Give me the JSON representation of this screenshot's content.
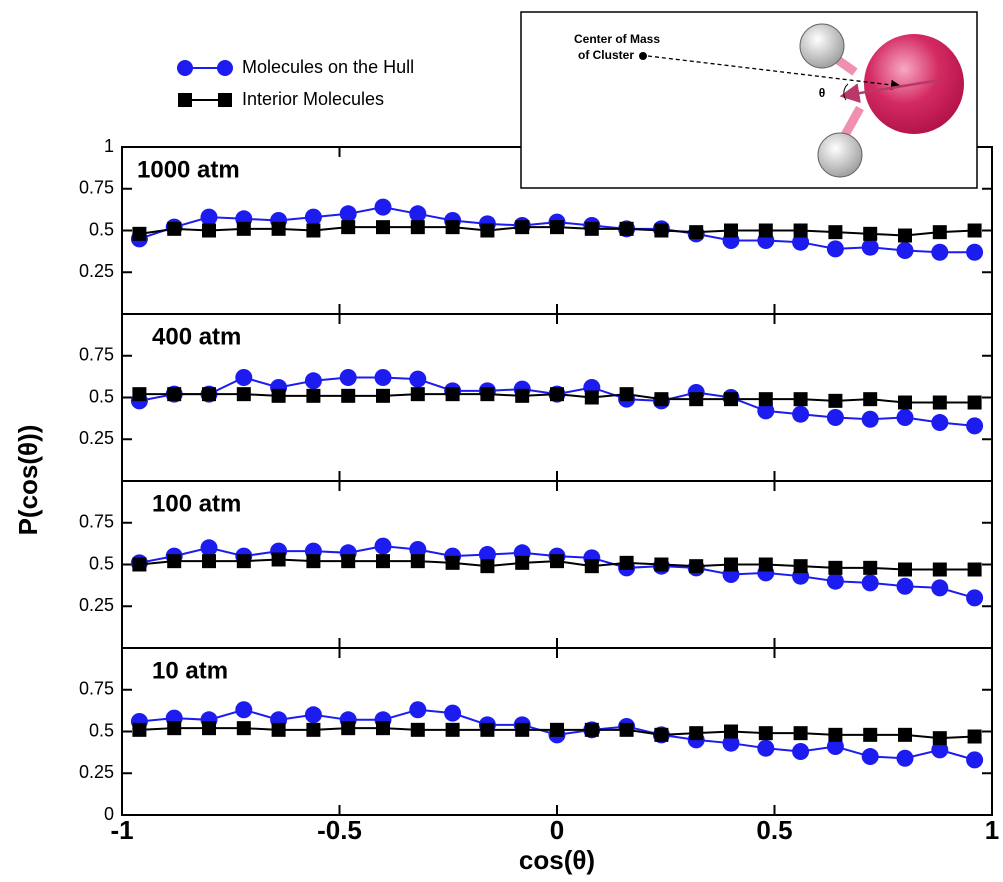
{
  "figure": {
    "xlabel": "cos(θ)",
    "ylabel": "P(cos(θ))"
  },
  "inset": {
    "line1": "Center of Mass",
    "line2": "of Cluster",
    "angle": "θ"
  },
  "chart_data": [
    {
      "type": "line",
      "annotation": "1000 atm",
      "x": [
        -0.96,
        -0.88,
        -0.8,
        -0.72,
        -0.64,
        -0.56,
        -0.48,
        -0.4,
        -0.32,
        -0.24,
        -0.16,
        -0.08,
        0,
        0.08,
        0.16,
        0.24,
        0.32,
        0.4,
        0.48,
        0.56,
        0.64,
        0.72,
        0.8,
        0.88,
        0.96
      ],
      "series": [
        {
          "name": "Molecules on the Hull",
          "color": "#1c1cf0",
          "marker": "circle",
          "values": [
            0.45,
            0.52,
            0.58,
            0.57,
            0.56,
            0.58,
            0.6,
            0.64,
            0.6,
            0.56,
            0.54,
            0.53,
            0.55,
            0.53,
            0.51,
            0.51,
            0.48,
            0.44,
            0.44,
            0.43,
            0.39,
            0.4,
            0.38,
            0.37,
            0.37
          ]
        },
        {
          "name": "Interior Molecules",
          "color": "#000000",
          "marker": "square",
          "values": [
            0.48,
            0.51,
            0.5,
            0.51,
            0.51,
            0.5,
            0.52,
            0.52,
            0.52,
            0.52,
            0.5,
            0.52,
            0.52,
            0.51,
            0.51,
            0.5,
            0.49,
            0.5,
            0.5,
            0.5,
            0.49,
            0.48,
            0.47,
            0.49,
            0.5
          ]
        }
      ],
      "xlim": [
        -1,
        1
      ],
      "ylim": [
        0,
        1
      ],
      "yticks": [
        0.25,
        0.5,
        0.75,
        1
      ]
    },
    {
      "type": "line",
      "annotation": "400 atm",
      "x": [
        -0.96,
        -0.88,
        -0.8,
        -0.72,
        -0.64,
        -0.56,
        -0.48,
        -0.4,
        -0.32,
        -0.24,
        -0.16,
        -0.08,
        0,
        0.08,
        0.16,
        0.24,
        0.32,
        0.4,
        0.48,
        0.56,
        0.64,
        0.72,
        0.8,
        0.88,
        0.96
      ],
      "series": [
        {
          "color": "#1c1cf0",
          "marker": "circle",
          "values": [
            0.48,
            0.52,
            0.52,
            0.62,
            0.56,
            0.6,
            0.62,
            0.62,
            0.61,
            0.54,
            0.54,
            0.55,
            0.52,
            0.56,
            0.49,
            0.48,
            0.53,
            0.5,
            0.42,
            0.4,
            0.38,
            0.37,
            0.38,
            0.35,
            0.33
          ]
        },
        {
          "color": "#000000",
          "marker": "square",
          "values": [
            0.52,
            0.52,
            0.52,
            0.52,
            0.51,
            0.51,
            0.51,
            0.51,
            0.52,
            0.52,
            0.52,
            0.51,
            0.52,
            0.5,
            0.52,
            0.49,
            0.49,
            0.49,
            0.49,
            0.49,
            0.48,
            0.49,
            0.47,
            0.47,
            0.47
          ]
        }
      ],
      "xlim": [
        -1,
        1
      ],
      "ylim": [
        0,
        1
      ],
      "yticks": [
        0.25,
        0.5,
        0.75
      ]
    },
    {
      "type": "line",
      "annotation": "100 atm",
      "x": [
        -0.96,
        -0.88,
        -0.8,
        -0.72,
        -0.64,
        -0.56,
        -0.48,
        -0.4,
        -0.32,
        -0.24,
        -0.16,
        -0.08,
        0,
        0.08,
        0.16,
        0.24,
        0.32,
        0.4,
        0.48,
        0.56,
        0.64,
        0.72,
        0.8,
        0.88,
        0.96
      ],
      "series": [
        {
          "color": "#1c1cf0",
          "marker": "circle",
          "values": [
            0.51,
            0.55,
            0.6,
            0.55,
            0.58,
            0.58,
            0.57,
            0.61,
            0.59,
            0.55,
            0.56,
            0.57,
            0.55,
            0.54,
            0.48,
            0.49,
            0.48,
            0.44,
            0.45,
            0.43,
            0.4,
            0.39,
            0.37,
            0.36,
            0.3
          ]
        },
        {
          "color": "#000000",
          "marker": "square",
          "values": [
            0.5,
            0.52,
            0.52,
            0.52,
            0.53,
            0.52,
            0.52,
            0.52,
            0.52,
            0.51,
            0.49,
            0.51,
            0.52,
            0.49,
            0.51,
            0.5,
            0.49,
            0.5,
            0.5,
            0.49,
            0.48,
            0.48,
            0.47,
            0.47,
            0.47
          ]
        }
      ],
      "xlim": [
        -1,
        1
      ],
      "ylim": [
        0,
        1
      ],
      "yticks": [
        0.25,
        0.5,
        0.75
      ]
    },
    {
      "type": "line",
      "annotation": "10 atm",
      "x": [
        -0.96,
        -0.88,
        -0.8,
        -0.72,
        -0.64,
        -0.56,
        -0.48,
        -0.4,
        -0.32,
        -0.24,
        -0.16,
        -0.08,
        0,
        0.08,
        0.16,
        0.24,
        0.32,
        0.4,
        0.48,
        0.56,
        0.64,
        0.72,
        0.8,
        0.88,
        0.96
      ],
      "series": [
        {
          "color": "#1c1cf0",
          "marker": "circle",
          "values": [
            0.56,
            0.58,
            0.57,
            0.63,
            0.57,
            0.6,
            0.57,
            0.57,
            0.63,
            0.61,
            0.54,
            0.54,
            0.48,
            0.51,
            0.53,
            0.48,
            0.45,
            0.43,
            0.4,
            0.38,
            0.41,
            0.35,
            0.34,
            0.39,
            0.33
          ]
        },
        {
          "color": "#000000",
          "marker": "square",
          "values": [
            0.51,
            0.52,
            0.52,
            0.52,
            0.51,
            0.51,
            0.52,
            0.52,
            0.51,
            0.51,
            0.51,
            0.51,
            0.51,
            0.51,
            0.51,
            0.48,
            0.49,
            0.5,
            0.49,
            0.49,
            0.48,
            0.48,
            0.48,
            0.46,
            0.47
          ]
        }
      ],
      "xlim": [
        -1,
        1
      ],
      "ylim": [
        0,
        1
      ],
      "yticks": [
        0,
        0.25,
        0.5,
        0.75
      ],
      "xticks": [
        -1,
        -0.5,
        0,
        0.5,
        1
      ]
    }
  ]
}
